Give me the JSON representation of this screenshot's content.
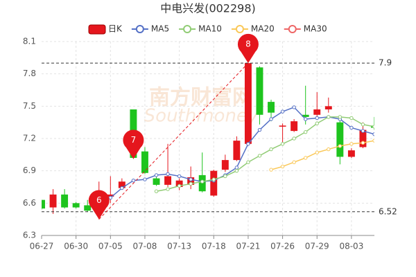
{
  "chart_data": {
    "type": "candlestick",
    "title": "中电兴发(002298)",
    "watermark": [
      "南方财富网",
      "Southmoney"
    ],
    "candle_name": "日K",
    "up_color": "#e5161d",
    "down_color": "#1ec41e",
    "categories": [
      "06-27",
      null,
      null,
      "06-30",
      null,
      null,
      "07-05",
      null,
      null,
      "07-08",
      null,
      null,
      "07-13",
      null,
      null,
      "07-18",
      null,
      null,
      "07-21",
      null,
      null,
      "07-26",
      null,
      null,
      "07-29",
      null,
      null,
      "08-03",
      null,
      null
    ],
    "open": [
      6.63,
      6.56,
      6.68,
      6.6,
      6.58,
      6.58,
      6.66,
      6.74,
      7.47,
      7.08,
      6.83,
      6.77,
      6.75,
      6.77,
      6.86,
      6.67,
      6.91,
      7.0,
      7.15,
      7.86,
      7.54,
      7.31,
      7.27,
      7.42,
      7.42,
      7.47,
      7.35,
      7.03,
      7.12,
      7.32
    ],
    "high": [
      6.63,
      6.73,
      6.73,
      6.61,
      6.63,
      6.8,
      6.85,
      6.83,
      7.47,
      7.12,
      6.86,
      7.15,
      6.83,
      6.94,
      7.07,
      6.91,
      7.05,
      7.22,
      7.9,
      7.87,
      7.56,
      7.34,
      7.38,
      7.69,
      7.63,
      7.58,
      7.39,
      7.11,
      7.35,
      7.4
    ],
    "low": [
      6.54,
      6.5,
      6.55,
      6.55,
      6.52,
      6.45,
      6.6,
      6.73,
      7.01,
      6.87,
      6.76,
      6.75,
      6.72,
      6.73,
      6.7,
      6.66,
      6.89,
      6.99,
      7.14,
      7.33,
      7.36,
      7.15,
      7.26,
      7.33,
      7.38,
      7.44,
      6.96,
      7.02,
      7.11,
      7.28
    ],
    "close": [
      6.55,
      6.68,
      6.56,
      6.56,
      6.53,
      6.6,
      6.68,
      6.8,
      7.02,
      6.88,
      6.77,
      6.85,
      6.81,
      6.84,
      6.71,
      6.9,
      7.0,
      7.18,
      7.9,
      7.42,
      7.44,
      7.32,
      7.36,
      7.4,
      7.47,
      7.5,
      7.03,
      7.09,
      7.28,
      7.3
    ],
    "series": [
      {
        "name": "MA5",
        "color": "#5470c6",
        "values": [
          null,
          null,
          null,
          null,
          null,
          6.58,
          6.65,
          6.74,
          6.81,
          6.82,
          6.86,
          6.87,
          6.85,
          6.82,
          6.8,
          6.81,
          6.86,
          6.93,
          7.15,
          7.28,
          7.38,
          7.45,
          7.49,
          7.38,
          7.39,
          7.4,
          7.38,
          7.3,
          7.27,
          7.24
        ]
      },
      {
        "name": "MA10",
        "color": "#91cc75",
        "values": [
          null,
          null,
          null,
          null,
          null,
          null,
          null,
          null,
          null,
          null,
          6.71,
          6.73,
          6.76,
          6.78,
          6.8,
          6.82,
          6.85,
          6.9,
          6.98,
          7.04,
          7.1,
          7.15,
          7.2,
          7.26,
          7.34,
          7.4,
          7.4,
          7.39,
          7.33,
          7.31
        ]
      },
      {
        "name": "MA20",
        "color": "#fac858",
        "values": [
          null,
          null,
          null,
          null,
          null,
          null,
          null,
          null,
          null,
          null,
          null,
          null,
          null,
          null,
          null,
          null,
          null,
          null,
          null,
          null,
          6.91,
          6.94,
          6.98,
          7.02,
          7.07,
          7.1,
          7.13,
          7.15,
          7.16,
          7.18
        ]
      },
      {
        "name": "MA30",
        "color": "#ee6666",
        "values": [
          null,
          null,
          null,
          null,
          null,
          null,
          null,
          null,
          null,
          null,
          null,
          null,
          null,
          null,
          null,
          null,
          null,
          null,
          null,
          null,
          null,
          null,
          null,
          null,
          null,
          null,
          null,
          null,
          null,
          null
        ]
      }
    ],
    "annotations": [
      {
        "text": "6",
        "value": 6.45
      },
      {
        "text": "7",
        "value": 7.01
      },
      {
        "text": "8",
        "value": 7.9
      }
    ],
    "hlines": [
      7.9,
      6.52
    ],
    "ylim": [
      6.3,
      8.1
    ],
    "yticks": [
      6.3,
      6.6,
      6.9,
      7.2,
      7.5,
      7.8,
      8.1
    ],
    "grid": true
  }
}
